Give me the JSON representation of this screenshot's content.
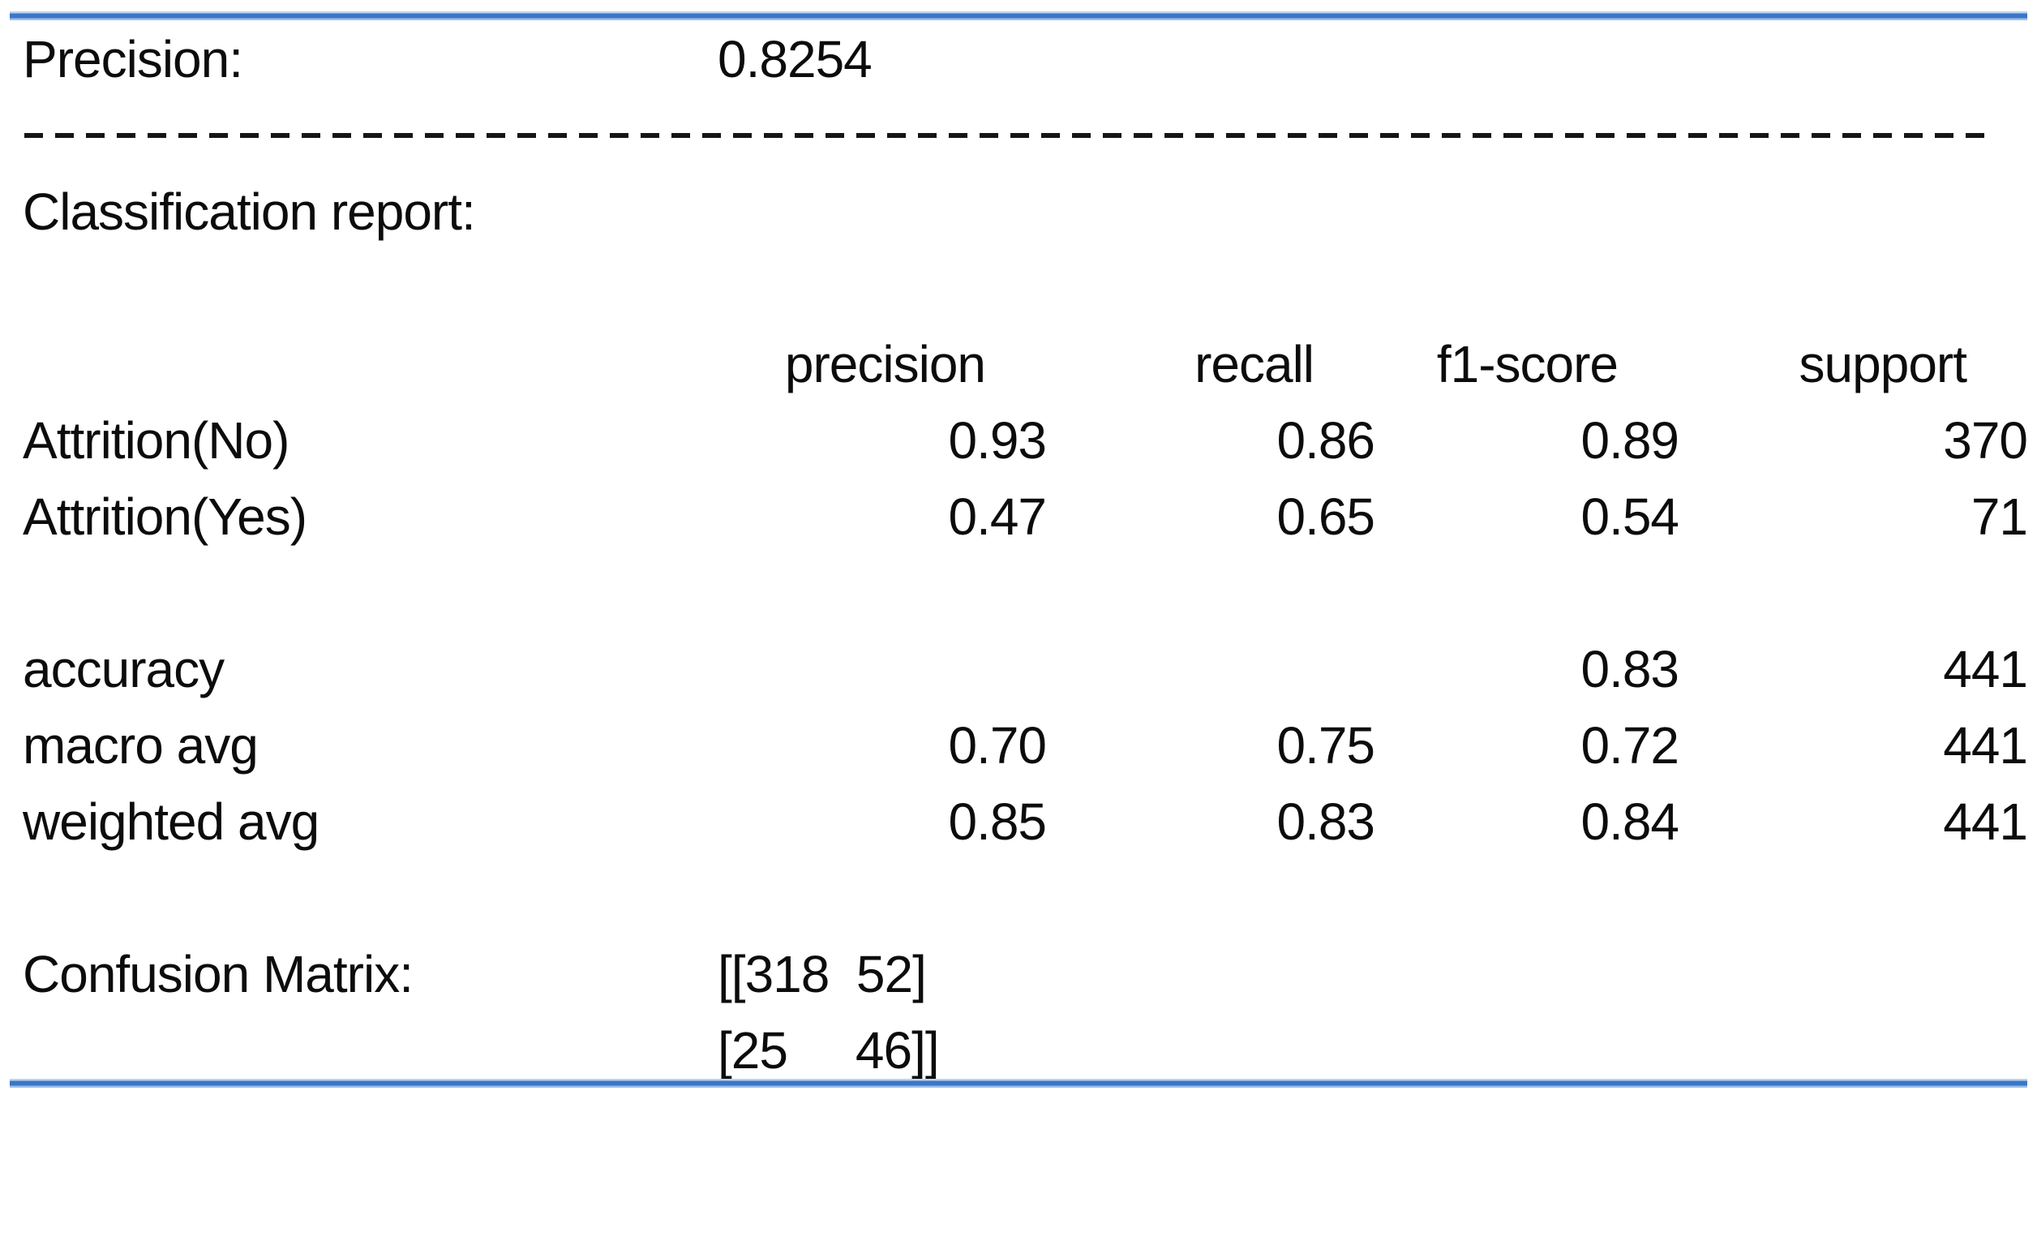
{
  "report": {
    "precision_label": "Precision:",
    "precision_value": "0.8254",
    "section_title": "Classification report:",
    "table": {
      "headers": [
        "precision",
        "recall",
        "f1-score",
        "support"
      ],
      "rows": [
        {
          "label": "Attrition(No)",
          "precision": "0.93",
          "recall": "0.86",
          "f1": "0.89",
          "support": "370"
        },
        {
          "label": "Attrition(Yes)",
          "precision": "0.47",
          "recall": "0.65",
          "f1": "0.54",
          "support": "71"
        },
        {
          "label": "accuracy",
          "precision": "",
          "recall": "",
          "f1": "0.83",
          "support": "441"
        },
        {
          "label": "macro avg",
          "precision": "0.70",
          "recall": "0.75",
          "f1": "0.72",
          "support": "441"
        },
        {
          "label": "weighted avg",
          "precision": "0.85",
          "recall": "0.83",
          "f1": "0.84",
          "support": "441"
        }
      ]
    },
    "confusion_label": "Confusion Matrix:",
    "confusion_row1": "[[318  52]",
    "confusion_row2": "[25     46]]"
  },
  "colors": {
    "accent_blue": "#3b76c8",
    "text": "#0c0c0c"
  }
}
